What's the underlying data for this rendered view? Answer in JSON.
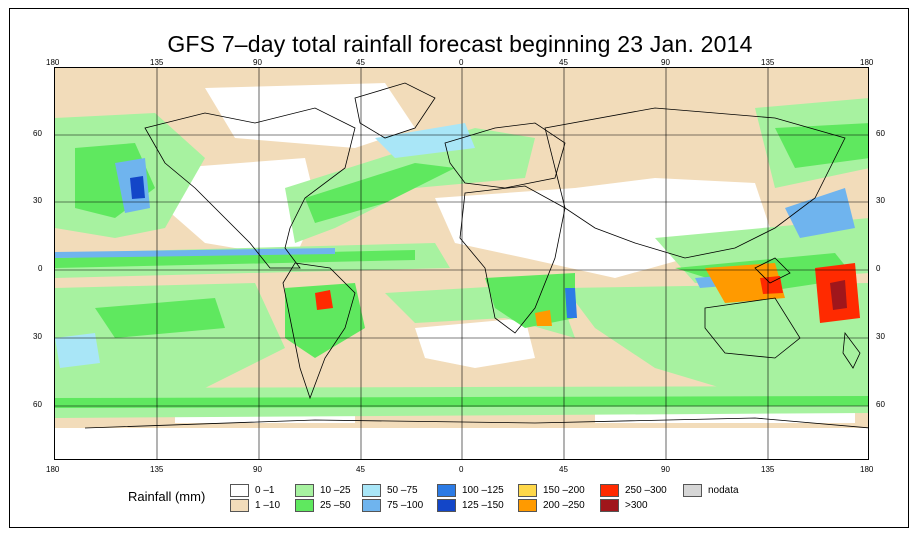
{
  "title": "GFS 7–day total rainfall forecast beginning 23 Jan. 2014",
  "lon_ticks": [
    "180",
    "135",
    "90",
    "45",
    "0",
    "45",
    "90",
    "135",
    "180"
  ],
  "lat_ticks": [
    "60",
    "30",
    "0",
    "30",
    "60"
  ],
  "legend": {
    "title": "Rainfall (mm)",
    "items": [
      {
        "label": "0 –1",
        "color": "#ffffff"
      },
      {
        "label": "1 –10",
        "color": "#f2dcba"
      },
      {
        "label": "10 –25",
        "color": "#a7f2a0"
      },
      {
        "label": "25 –50",
        "color": "#5fe85f"
      },
      {
        "label": "50 –75",
        "color": "#a9e6f7"
      },
      {
        "label": "75 –100",
        "color": "#6fb4ee"
      },
      {
        "label": "100 –125",
        "color": "#2c7be5"
      },
      {
        "label": "125 –150",
        "color": "#1346c8"
      },
      {
        "label": "150 –200",
        "color": "#ffd84a"
      },
      {
        "label": "200 –250",
        "color": "#ff9a00"
      },
      {
        "label": "250 –300",
        "color": "#ff2a00"
      },
      {
        "label": ">300",
        "color": "#a0161b"
      },
      {
        "label": "nodata",
        "color": "#d6d6d6"
      }
    ]
  }
}
